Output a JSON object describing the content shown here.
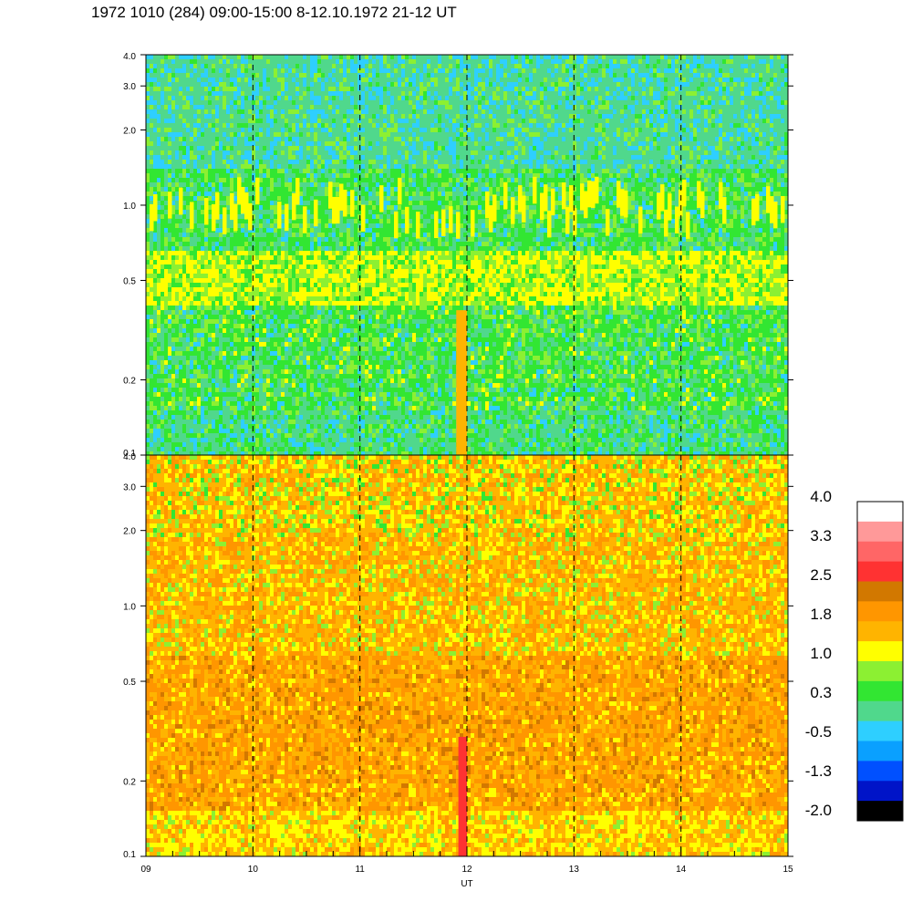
{
  "title": "1972 1010 (284) 09:00-15:00 8-12.10.1972  21-12 UT",
  "chart_data": [
    {
      "type": "heatmap",
      "panel": "upper",
      "x": [
        "09",
        "10",
        "11",
        "12",
        "13",
        "14",
        "15"
      ],
      "xlim": [
        9,
        15
      ],
      "y_ticks": [
        "0.1",
        "0.2",
        "0.5",
        "1.0",
        "2.0",
        "3.0",
        "4.0"
      ],
      "ylim": [
        0.1,
        4.0
      ],
      "y_scale": "log",
      "dashed_vertical_lines_at": [
        10,
        11,
        12,
        13,
        14
      ],
      "dominant_colors": [
        "#22e622",
        "#50d88c",
        "#8cf032",
        "#ffff00",
        "#2ecfff"
      ],
      "features": [
        {
          "note": "yellow band",
          "y_range": [
            0.75,
            1.3
          ]
        },
        {
          "note": "orange column",
          "x_range": [
            11.9,
            12.0
          ],
          "y_range": [
            0.1,
            0.38
          ]
        }
      ]
    },
    {
      "type": "heatmap",
      "panel": "lower",
      "x": [
        "09",
        "10",
        "11",
        "12",
        "13",
        "14",
        "15"
      ],
      "xlabel": "UT",
      "xlim": [
        9,
        15
      ],
      "y_ticks": [
        "0.1",
        "0.2",
        "0.5",
        "1.0",
        "2.0",
        "3.0",
        "4.0"
      ],
      "ylim": [
        0.1,
        4.0
      ],
      "y_scale": "log",
      "dashed_vertical_lines_at": [
        10,
        11,
        12,
        13,
        14
      ],
      "dominant_colors": [
        "#ffb400",
        "#ff9600",
        "#ffff00",
        "#8cf032",
        "#d27800"
      ],
      "features": [
        {
          "note": "red column",
          "x_range": [
            11.92,
            12.0
          ],
          "y_range": [
            0.1,
            0.3
          ]
        }
      ]
    }
  ],
  "colorbar": {
    "labels": [
      "4.0",
      "3.3",
      "2.5",
      "1.8",
      "1.0",
      "0.3",
      "-0.5",
      "-1.3",
      "-2.0"
    ],
    "colors": [
      "#ffffff",
      "#ff9999",
      "#ff6666",
      "#ff3232",
      "#d27800",
      "#ff9600",
      "#ffb400",
      "#ffff00",
      "#8cf032",
      "#32e632",
      "#50d88c",
      "#2ecfff",
      "#0aa0ff",
      "#0050ff",
      "#0014c8",
      "#000000"
    ]
  }
}
